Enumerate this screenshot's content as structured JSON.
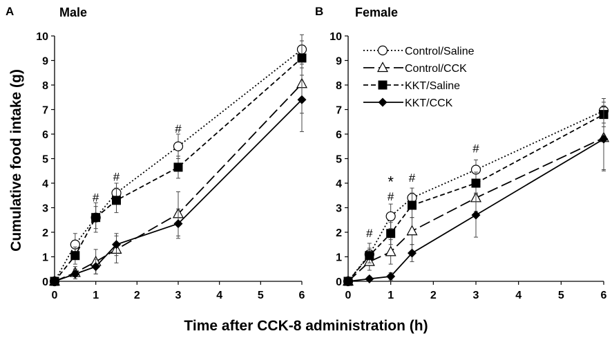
{
  "figure": {
    "ylabel": "Cumulative food intake (g)",
    "xlabel": "Time after CCK-8 administration (h)"
  },
  "chart_data": [
    {
      "type": "line",
      "panel_letter": "A",
      "title": "Male",
      "x": [
        0,
        0.5,
        1,
        1.5,
        3,
        6
      ],
      "x_tick_labels": [
        "0",
        "1",
        "2",
        "3",
        "4",
        "5",
        "6"
      ],
      "y_tick_labels": [
        "0",
        "1",
        "2",
        "3",
        "4",
        "5",
        "6",
        "7",
        "8",
        "9",
        "10"
      ],
      "ylim": [
        0,
        10
      ],
      "series": [
        {
          "name": "Control/Saline",
          "values": [
            0,
            1.5,
            2.6,
            3.6,
            5.5,
            9.45
          ],
          "errors": [
            0.1,
            0.45,
            0.45,
            0.4,
            0.5,
            0.6
          ]
        },
        {
          "name": "Control/CCK",
          "values": [
            0,
            0.35,
            0.8,
            1.3,
            2.75,
            8.05
          ],
          "errors": [
            0.1,
            0.25,
            0.5,
            0.55,
            0.9,
            1.2
          ]
        },
        {
          "name": "KKT/Saline",
          "values": [
            0,
            1.05,
            2.6,
            3.3,
            4.65,
            9.1
          ],
          "errors": [
            0.1,
            0.35,
            0.6,
            0.5,
            0.45,
            0.7
          ]
        },
        {
          "name": "KKT/CCK",
          "values": [
            0,
            0.3,
            0.6,
            1.5,
            2.35,
            7.4
          ],
          "errors": [
            0.1,
            0.2,
            0.3,
            0.45,
            0.6,
            1.3
          ]
        }
      ],
      "annotations": [
        {
          "x": 1,
          "y": 3.25,
          "text": "#"
        },
        {
          "x": 1.5,
          "y": 4.1,
          "text": "#"
        },
        {
          "x": 3,
          "y": 6.05,
          "text": "#"
        }
      ]
    },
    {
      "type": "line",
      "panel_letter": "B",
      "title": "Female",
      "x": [
        0,
        0.5,
        1,
        1.5,
        3,
        6
      ],
      "x_tick_labels": [
        "0",
        "1",
        "2",
        "3",
        "4",
        "5",
        "6"
      ],
      "y_tick_labels": [
        "0",
        "1",
        "2",
        "3",
        "4",
        "5",
        "6",
        "7",
        "8",
        "9",
        "10"
      ],
      "ylim": [
        0,
        10
      ],
      "legend_position": "top-left",
      "series": [
        {
          "name": "Control/Saline",
          "values": [
            0,
            1.1,
            2.65,
            3.4,
            4.55,
            6.95
          ],
          "errors": [
            0.1,
            0.45,
            0.5,
            0.4,
            0.4,
            0.5
          ]
        },
        {
          "name": "Control/CCK",
          "values": [
            0,
            0.8,
            1.2,
            2.05,
            3.4,
            5.85
          ],
          "errors": [
            0.1,
            0.35,
            0.5,
            0.55,
            0.55,
            1.3
          ]
        },
        {
          "name": "KKT/Saline",
          "values": [
            0,
            1.05,
            1.95,
            3.1,
            4.0,
            6.8
          ],
          "errors": [
            0.1,
            0.3,
            0.45,
            0.5,
            0.45,
            0.5
          ]
        },
        {
          "name": "KKT/CCK",
          "values": [
            0,
            0.1,
            0.2,
            1.15,
            2.7,
            5.8
          ],
          "errors": [
            0.05,
            0.1,
            0.15,
            0.35,
            0.9,
            1.3
          ]
        }
      ],
      "annotations": [
        {
          "x": 0.5,
          "y": 1.8,
          "text": "#"
        },
        {
          "x": 1,
          "y": 3.3,
          "text": "#"
        },
        {
          "x": 1,
          "y": 3.85,
          "text": "*"
        },
        {
          "x": 1.5,
          "y": 4.05,
          "text": "#"
        },
        {
          "x": 3,
          "y": 5.25,
          "text": "#"
        }
      ]
    }
  ]
}
